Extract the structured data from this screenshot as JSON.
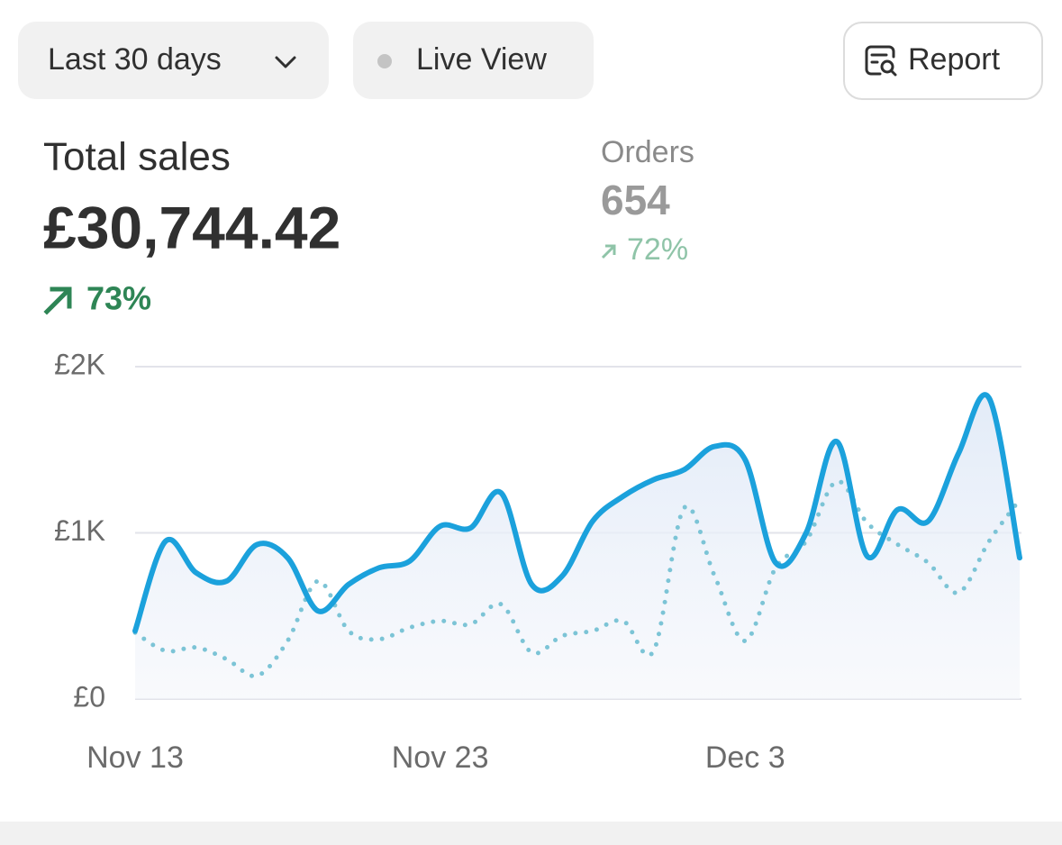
{
  "header": {
    "date_range": "Last 30 days",
    "live": "Live View",
    "report": "Report"
  },
  "metrics": {
    "total_sales": {
      "label": "Total sales",
      "value": "£30,744.42",
      "change": "73%"
    },
    "orders": {
      "label": "Orders",
      "value": "654",
      "change": "72%"
    }
  },
  "chart_data": {
    "type": "line",
    "categories": [
      "Nov 13",
      null,
      null,
      null,
      null,
      null,
      null,
      null,
      null,
      null,
      "Nov 23",
      null,
      null,
      null,
      null,
      null,
      null,
      null,
      null,
      null,
      "Dec 3",
      null,
      null,
      null,
      null,
      null,
      null,
      null,
      null,
      null
    ],
    "series": [
      {
        "color": "#1ba1dc",
        "style": "solid",
        "area": true,
        "values": [
          410,
          950,
          760,
          710,
          930,
          850,
          530,
          690,
          790,
          830,
          1040,
          1030,
          1240,
          690,
          740,
          1070,
          1220,
          1320,
          1380,
          1520,
          1440,
          820,
          1000,
          1550,
          860,
          1140,
          1070,
          1480,
          1810,
          850
        ]
      },
      {
        "color": "#7cc4d6",
        "style": "dotted",
        "area": false,
        "values": [
          400,
          290,
          310,
          240,
          140,
          350,
          710,
          410,
          360,
          430,
          470,
          450,
          570,
          280,
          380,
          410,
          470,
          290,
          1150,
          740,
          350,
          790,
          950,
          1310,
          1060,
          930,
          820,
          640,
          950,
          1200
        ]
      }
    ],
    "ylim": [
      0,
      2000
    ],
    "yticks": [
      {
        "value": 0,
        "label": "£0"
      },
      {
        "value": 1000,
        "label": "£1K"
      },
      {
        "value": 2000,
        "label": "£2K"
      }
    ],
    "grid": true
  }
}
